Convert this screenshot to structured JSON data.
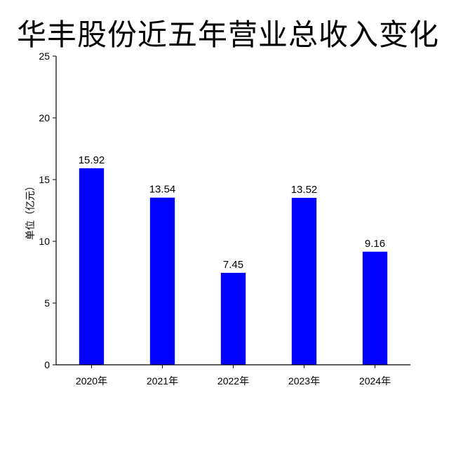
{
  "chart_data": {
    "type": "bar",
    "title": "华丰股份近五年营业总收入变化",
    "xlabel": "",
    "ylabel": "单位（亿元）",
    "categories": [
      "2020年",
      "2021年",
      "2022年",
      "2023年",
      "2024年"
    ],
    "values": [
      15.92,
      13.54,
      7.45,
      13.52,
      9.16
    ],
    "value_labels": [
      "15.92",
      "13.54",
      "7.45",
      "13.52",
      "9.16"
    ],
    "ylim": [
      0,
      25
    ],
    "yticks": [
      0,
      5,
      10,
      15,
      20,
      25
    ],
    "grid": false,
    "bar_color": "#0000ff"
  }
}
